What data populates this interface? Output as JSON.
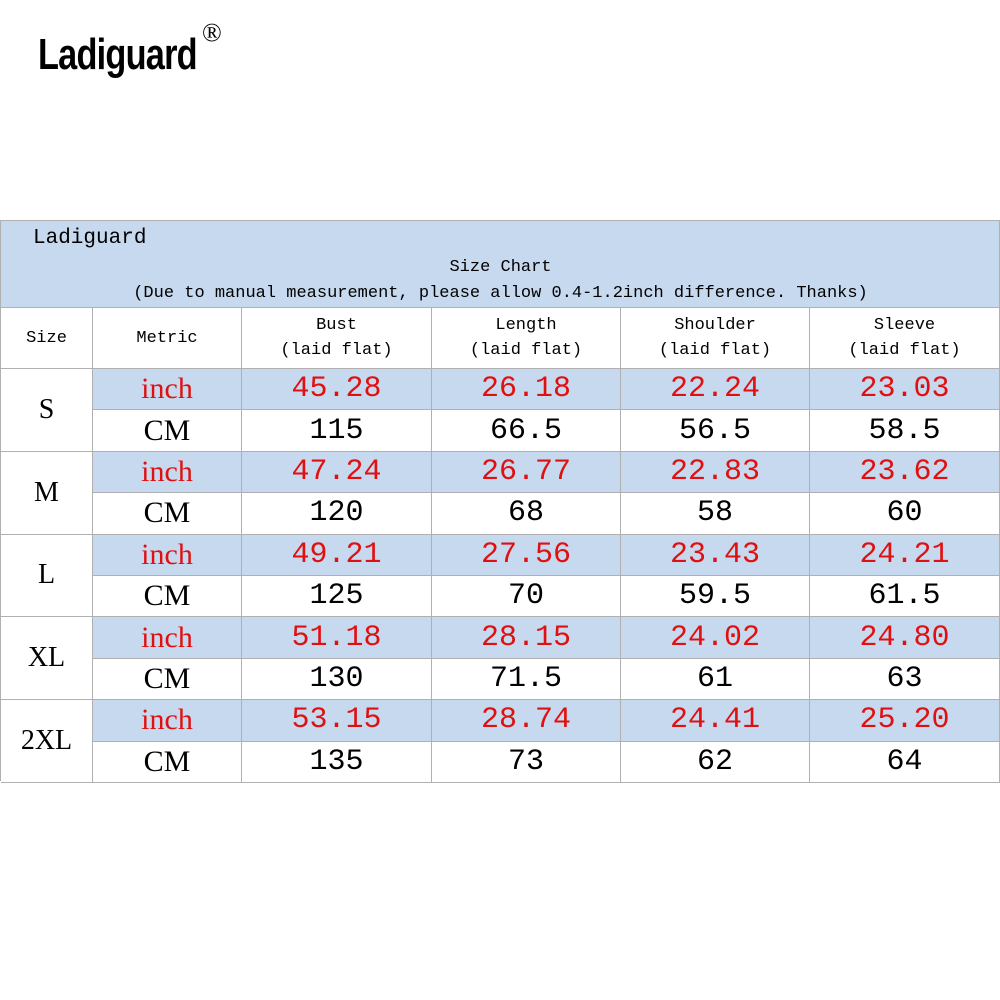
{
  "logo": {
    "text": "Ladiguard",
    "mark": "®"
  },
  "table": {
    "brand": "Ladiguard",
    "title": "Size Chart",
    "note": "(Due to manual measurement, please allow 0.4-1.2inch difference. Thanks)",
    "columns": [
      {
        "name": "Size"
      },
      {
        "name": "Metric"
      },
      {
        "name": "Bust",
        "sub": "(laid flat)"
      },
      {
        "name": "Length",
        "sub": "(laid flat)"
      },
      {
        "name": "Shoulder",
        "sub": "(laid flat)"
      },
      {
        "name": "Sleeve",
        "sub": "(laid flat)"
      }
    ],
    "sizes": [
      {
        "size": "S",
        "rows": [
          {
            "metric": "inch",
            "values": [
              "45.28",
              "26.18",
              "22.24",
              "23.03"
            ]
          },
          {
            "metric": "CM",
            "values": [
              "115",
              "66.5",
              "56.5",
              "58.5"
            ]
          }
        ]
      },
      {
        "size": "M",
        "rows": [
          {
            "metric": "inch",
            "values": [
              "47.24",
              "26.77",
              "22.83",
              "23.62"
            ]
          },
          {
            "metric": "CM",
            "values": [
              "120",
              "68",
              "58",
              "60"
            ]
          }
        ]
      },
      {
        "size": "L",
        "rows": [
          {
            "metric": "inch",
            "values": [
              "49.21",
              "27.56",
              "23.43",
              "24.21"
            ]
          },
          {
            "metric": "CM",
            "values": [
              "125",
              "70",
              "59.5",
              "61.5"
            ]
          }
        ]
      },
      {
        "size": "XL",
        "rows": [
          {
            "metric": "inch",
            "values": [
              "51.18",
              "28.15",
              "24.02",
              "24.80"
            ]
          },
          {
            "metric": "CM",
            "values": [
              "130",
              "71.5",
              "61",
              "63"
            ]
          }
        ]
      },
      {
        "size": "2XL",
        "rows": [
          {
            "metric": "inch",
            "values": [
              "53.15",
              "28.74",
              "24.41",
              "25.20"
            ]
          },
          {
            "metric": "CM",
            "values": [
              "135",
              "73",
              "62",
              "64"
            ]
          }
        ]
      }
    ]
  }
}
